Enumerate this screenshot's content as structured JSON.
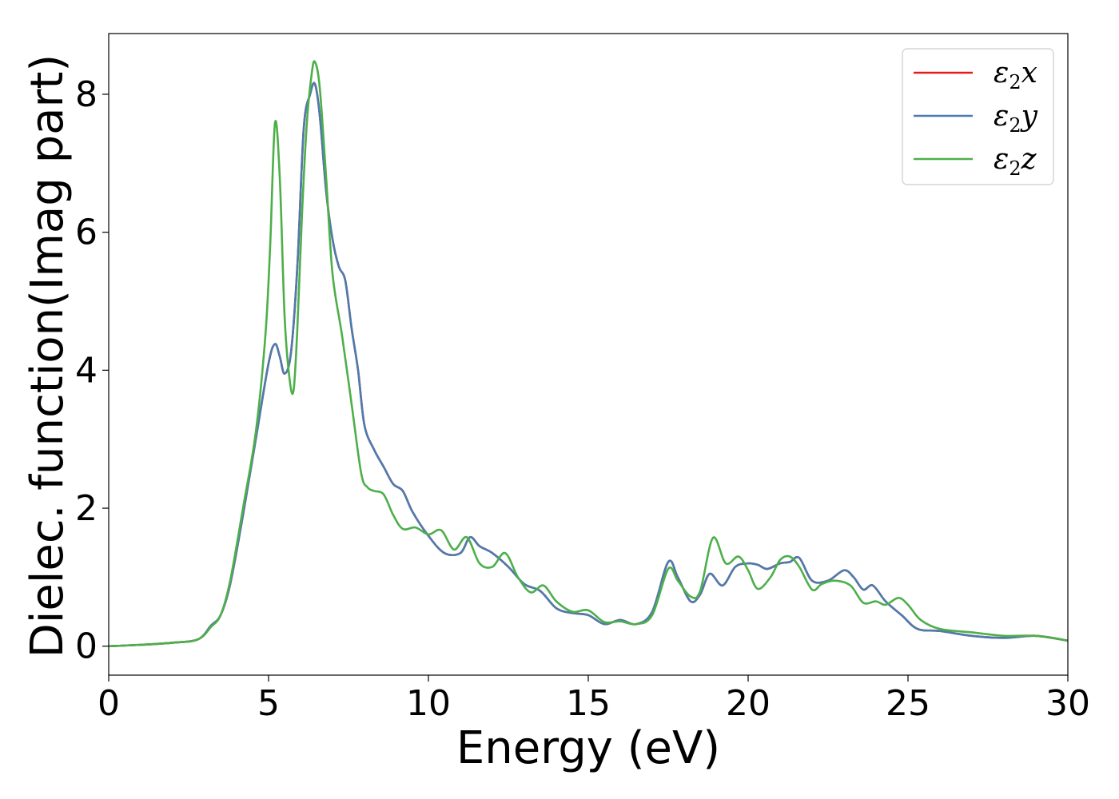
{
  "chart_data": {
    "type": "line",
    "xlabel": "Energy (eV)",
    "ylabel": "Dielec. function(Imag part)",
    "xlim": [
      0,
      30
    ],
    "ylim": [
      -0.42,
      8.88
    ],
    "xticks": [
      0,
      5,
      10,
      15,
      20,
      25,
      30
    ],
    "yticks": [
      0,
      2,
      4,
      6,
      8
    ],
    "grid": false,
    "legend_position": "top-right",
    "series": [
      {
        "name": "ε2x",
        "label_base": "ε",
        "label_sub": "2",
        "label_var": "x",
        "color": "#e41a1c",
        "x": [
          0,
          1,
          2,
          2.8,
          3.2,
          3.5,
          3.8,
          4.2,
          4.6,
          5.0,
          5.2,
          5.35,
          5.5,
          5.7,
          5.9,
          6.1,
          6.3,
          6.45,
          6.6,
          6.8,
          7.0,
          7.2,
          7.4,
          7.6,
          7.8,
          8.0,
          8.3,
          8.6,
          8.9,
          9.2,
          9.5,
          10.0,
          10.5,
          11.0,
          11.3,
          11.6,
          12.0,
          12.5,
          13.0,
          13.5,
          14.0,
          14.5,
          15.0,
          15.5,
          16.0,
          16.5,
          17.0,
          17.5,
          17.8,
          18.2,
          18.5,
          18.8,
          19.2,
          19.6,
          20.0,
          20.3,
          20.6,
          21.0,
          21.3,
          21.6,
          22.0,
          22.5,
          23.0,
          23.3,
          23.6,
          23.9,
          24.3,
          24.8,
          25.3,
          26.0,
          27.0,
          28.0,
          29.0,
          30.0
        ],
        "y": [
          0,
          0.02,
          0.05,
          0.1,
          0.3,
          0.45,
          0.9,
          1.9,
          3.0,
          4.1,
          4.38,
          4.2,
          3.95,
          4.25,
          5.5,
          7.5,
          8.0,
          8.15,
          7.7,
          6.6,
          5.9,
          5.5,
          5.3,
          4.6,
          4.0,
          3.2,
          2.85,
          2.6,
          2.35,
          2.25,
          1.95,
          1.6,
          1.35,
          1.35,
          1.58,
          1.45,
          1.35,
          1.15,
          0.9,
          0.8,
          0.55,
          0.48,
          0.45,
          0.32,
          0.38,
          0.32,
          0.5,
          1.22,
          1.0,
          0.65,
          0.75,
          1.05,
          0.88,
          1.15,
          1.2,
          1.18,
          1.12,
          1.2,
          1.22,
          1.28,
          0.95,
          0.95,
          1.1,
          1.0,
          0.82,
          0.88,
          0.65,
          0.45,
          0.25,
          0.22,
          0.15,
          0.12,
          0.15,
          0.08
        ]
      },
      {
        "name": "ε2y",
        "label_base": "ε",
        "label_sub": "2",
        "label_var": "y",
        "color": "#4c7cae",
        "x": [
          0,
          1,
          2,
          2.8,
          3.2,
          3.5,
          3.8,
          4.2,
          4.6,
          5.0,
          5.2,
          5.35,
          5.5,
          5.7,
          5.9,
          6.1,
          6.3,
          6.45,
          6.6,
          6.8,
          7.0,
          7.2,
          7.4,
          7.6,
          7.8,
          8.0,
          8.3,
          8.6,
          8.9,
          9.2,
          9.5,
          10.0,
          10.5,
          11.0,
          11.3,
          11.6,
          12.0,
          12.5,
          13.0,
          13.5,
          14.0,
          14.5,
          15.0,
          15.5,
          16.0,
          16.5,
          17.0,
          17.5,
          17.8,
          18.2,
          18.5,
          18.8,
          19.2,
          19.6,
          20.0,
          20.3,
          20.6,
          21.0,
          21.3,
          21.6,
          22.0,
          22.5,
          23.0,
          23.3,
          23.6,
          23.9,
          24.3,
          24.8,
          25.3,
          26.0,
          27.0,
          28.0,
          29.0,
          30.0
        ],
        "y": [
          0,
          0.02,
          0.05,
          0.1,
          0.3,
          0.45,
          0.9,
          1.9,
          3.0,
          4.1,
          4.38,
          4.2,
          3.95,
          4.25,
          5.5,
          7.5,
          8.0,
          8.15,
          7.7,
          6.6,
          5.9,
          5.5,
          5.3,
          4.6,
          4.0,
          3.2,
          2.85,
          2.6,
          2.35,
          2.25,
          1.95,
          1.6,
          1.35,
          1.35,
          1.58,
          1.45,
          1.35,
          1.15,
          0.9,
          0.8,
          0.55,
          0.48,
          0.45,
          0.32,
          0.38,
          0.32,
          0.5,
          1.22,
          1.0,
          0.65,
          0.75,
          1.05,
          0.88,
          1.15,
          1.2,
          1.18,
          1.12,
          1.2,
          1.22,
          1.28,
          0.95,
          0.95,
          1.1,
          1.0,
          0.82,
          0.88,
          0.65,
          0.45,
          0.25,
          0.22,
          0.15,
          0.12,
          0.15,
          0.08
        ]
      },
      {
        "name": "ε2z",
        "label_base": "ε",
        "label_sub": "2",
        "label_var": "z",
        "color": "#4daf4a",
        "x": [
          0,
          1,
          2,
          2.8,
          3.2,
          3.5,
          3.8,
          4.2,
          4.6,
          4.9,
          5.05,
          5.2,
          5.35,
          5.5,
          5.65,
          5.78,
          5.9,
          6.05,
          6.2,
          6.35,
          6.45,
          6.6,
          6.8,
          7.0,
          7.3,
          7.6,
          7.9,
          8.1,
          8.3,
          8.6,
          8.9,
          9.2,
          9.6,
          10.0,
          10.4,
          10.8,
          11.2,
          11.6,
          12.0,
          12.4,
          12.8,
          13.2,
          13.6,
          14.0,
          14.5,
          15.0,
          15.5,
          16.0,
          16.5,
          17.0,
          17.5,
          17.8,
          18.2,
          18.5,
          18.9,
          19.3,
          19.7,
          20.0,
          20.3,
          20.7,
          21.0,
          21.3,
          21.6,
          22.0,
          22.3,
          22.7,
          23.2,
          23.6,
          24.0,
          24.3,
          24.7,
          25.0,
          25.4,
          26.0,
          27.0,
          28.0,
          29.0,
          30.0
        ],
        "y": [
          0,
          0.02,
          0.05,
          0.1,
          0.28,
          0.45,
          0.95,
          2.0,
          3.1,
          4.5,
          5.8,
          7.58,
          6.8,
          4.8,
          3.9,
          3.7,
          4.6,
          6.3,
          7.6,
          8.3,
          8.47,
          8.1,
          6.8,
          5.4,
          4.5,
          3.5,
          2.5,
          2.3,
          2.25,
          2.2,
          1.9,
          1.7,
          1.72,
          1.62,
          1.68,
          1.4,
          1.58,
          1.2,
          1.15,
          1.35,
          1.0,
          0.78,
          0.88,
          0.65,
          0.5,
          0.52,
          0.35,
          0.36,
          0.32,
          0.45,
          1.12,
          0.95,
          0.72,
          0.8,
          1.57,
          1.2,
          1.3,
          1.1,
          0.83,
          1.0,
          1.25,
          1.3,
          1.15,
          0.82,
          0.9,
          0.95,
          0.88,
          0.63,
          0.65,
          0.6,
          0.7,
          0.6,
          0.38,
          0.25,
          0.2,
          0.15,
          0.15,
          0.08
        ]
      }
    ]
  }
}
